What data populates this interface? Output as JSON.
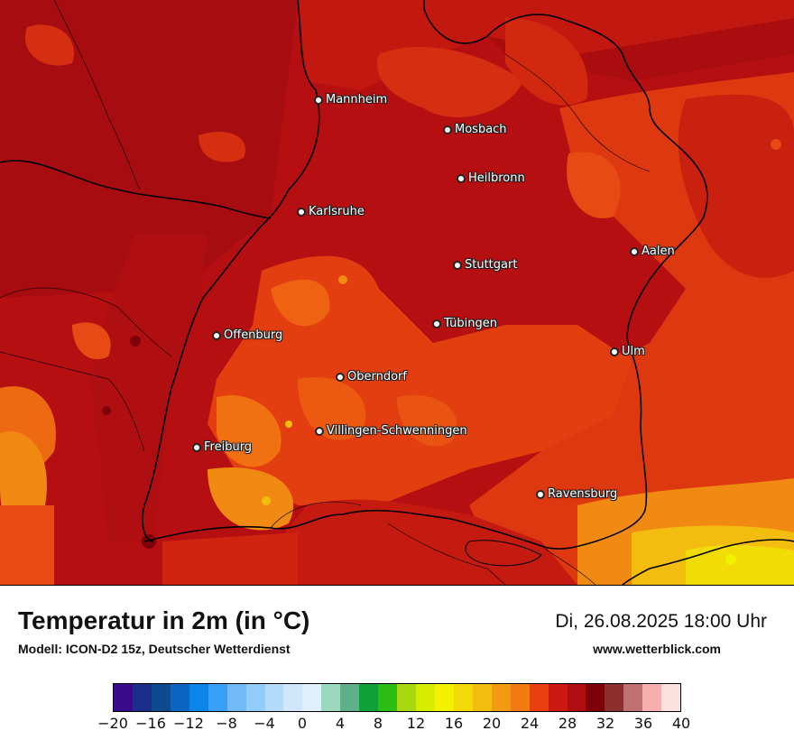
{
  "map": {
    "cities": [
      {
        "name": "Mannheim"
      },
      {
        "name": "Mosbach"
      },
      {
        "name": "Heilbronn"
      },
      {
        "name": "Karlsruhe"
      },
      {
        "name": "Aalen"
      },
      {
        "name": "Stuttgart"
      },
      {
        "name": "Tübingen"
      },
      {
        "name": "Offenburg"
      },
      {
        "name": "Ulm"
      },
      {
        "name": "Oberndorf"
      },
      {
        "name": "Villingen-Schwenningen"
      },
      {
        "name": "Freiburg"
      },
      {
        "name": "Ravensburg"
      }
    ]
  },
  "footer": {
    "title": "Temperatur in 2m (in °C)",
    "model": "Modell: ICON-D2 15z, Deutscher Wetterdienst",
    "datetime": "Di, 26.08.2025 18:00 Uhr",
    "website": "www.wetterblick.com"
  },
  "legend": {
    "colors": [
      "#3a0a8c",
      "#1a2f8a",
      "#0d4a8e",
      "#0a66c0",
      "#0b86e8",
      "#3aa0f5",
      "#6fbaf7",
      "#93ccf8",
      "#b4dbfa",
      "#cfe6fb",
      "#e0effc",
      "#9ad8c0",
      "#5fb08a",
      "#10a038",
      "#2cbd12",
      "#a8d810",
      "#d8ec00",
      "#f2f200",
      "#f3d80a",
      "#f3bd10",
      "#f39a12",
      "#f27a12",
      "#e83e10",
      "#cc1a12",
      "#b00f12",
      "#7e0008",
      "#8a2e2e",
      "#c07070",
      "#f7b0ae",
      "#fde0e0"
    ],
    "tick_labels": [
      "−20",
      "−16",
      "−12",
      "−8",
      "−4",
      "0",
      "4",
      "8",
      "12",
      "16",
      "20",
      "24",
      "28",
      "32",
      "36",
      "40"
    ]
  }
}
